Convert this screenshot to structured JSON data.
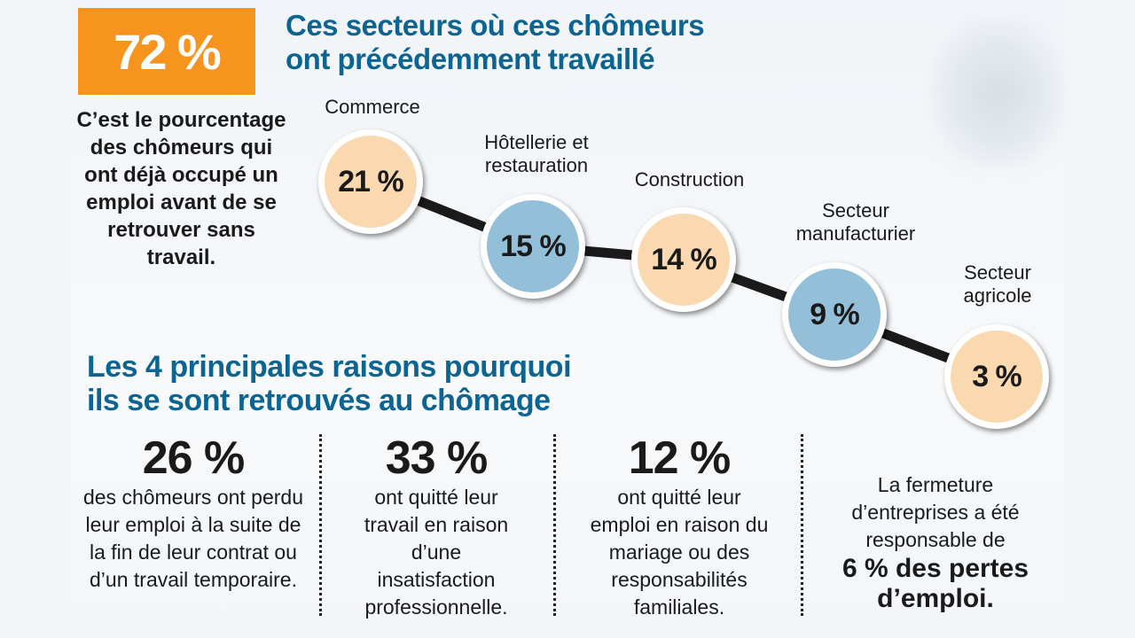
{
  "headline": {
    "value": "72 %",
    "caption": "C’est le pourcentage des chômeurs qui ont déjà occupé un emploi avant de se retrouver sans travail."
  },
  "sectors_title": [
    "Ces secteurs où ces chômeurs",
    "ont précédemment travaillé"
  ],
  "reasons_title": [
    "Les 4 principales raisons pourquoi",
    "ils se sont retrouvés au chômage"
  ],
  "reasons": [
    {
      "pct": "26 %",
      "text": "des chômeurs ont perdu leur emploi à la suite de la fin de leur contrat ou d’un travail temporaire."
    },
    {
      "pct": "33 %",
      "text": "ont quitté leur travail en raison d’une insatisfaction professionnelle."
    },
    {
      "pct": "12 %",
      "text": "ont quitté leur emploi en raison du mariage ou des responsabilités familiales."
    }
  ],
  "closing": {
    "text": "La fermeture d’entreprises a été responsable de",
    "highlight": "6 % des pertes d’emploi."
  },
  "colors": {
    "orange": "#f7941d",
    "blue_title": "#0b6491",
    "peach": "#fbd9b0",
    "light_blue": "#93bfd9"
  },
  "chart_data": {
    "type": "scatter",
    "title": "Ces secteurs où ces chômeurs ont précédemment travaillé",
    "categories": [
      "Commerce",
      "Hôtellerie et restauration",
      "Construction",
      "Secteur manufacturier",
      "Secteur agricole"
    ],
    "values": [
      21,
      15,
      14,
      9,
      3
    ],
    "labels": [
      "21 %",
      "15 %",
      "14 %",
      "9 %",
      "3 %"
    ],
    "unit": "%"
  }
}
